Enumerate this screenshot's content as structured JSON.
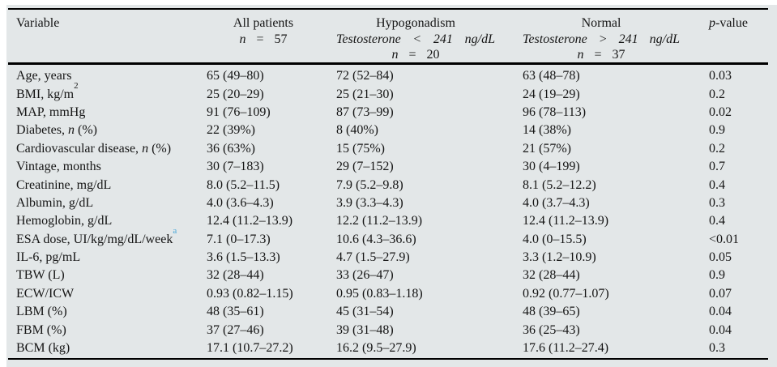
{
  "colors": {
    "panel_bg": "#e3e7e8",
    "rule": "#000000",
    "text": "#151515",
    "footnote_link": "#45a6d8"
  },
  "header": {
    "variable_label": "Variable",
    "all": {
      "title": "All patients",
      "n_label": "n",
      "eq": "=",
      "n_value": "57"
    },
    "hypo": {
      "title": "Hypogonadism",
      "criteria": [
        "Testosterone",
        "<",
        "241",
        "ng/dL"
      ],
      "n_label": "n",
      "eq": "=",
      "n_value": "20"
    },
    "normal": {
      "title": "Normal",
      "criteria": [
        "Testosterone",
        ">",
        "241",
        "ng/dL"
      ],
      "n_label": "n",
      "eq": "=",
      "n_value": "37"
    },
    "pvalue": {
      "italic": "p",
      "rest": "-value"
    }
  },
  "rows": [
    {
      "pre": "Age, years",
      "all": "65 (49–80)",
      "hypo": "72 (52–84)",
      "normal": "63 (48–78)",
      "p": "0.03"
    },
    {
      "pre": "BMI, kg/m",
      "sup": "2",
      "all": "25 (20–29)",
      "hypo": "25 (21–30)",
      "normal": "24 (19–29)",
      "p": "0.2"
    },
    {
      "pre": "MAP, mmHg",
      "all": "91 (76–109)",
      "hypo": "87 (73–99)",
      "normal": "96 (78–113)",
      "p": "0.02"
    },
    {
      "pre": "Diabetes, ",
      "it": "n",
      "post": " (%)",
      "all": "22 (39%)",
      "hypo": "8 (40%)",
      "normal": "14 (38%)",
      "p": "0.9"
    },
    {
      "pre": "Cardiovascular disease, ",
      "it": "n",
      "post": " (%)",
      "all": "36 (63%)",
      "hypo": "15 (75%)",
      "normal": "21 (57%)",
      "p": "0.2"
    },
    {
      "pre": "Vintage, months",
      "all": "30 (7–183)",
      "hypo": "29 (7–152)",
      "normal": "30 (4–199)",
      "p": "0.7"
    },
    {
      "pre": "Creatinine, mg/dL",
      "all": "8.0 (5.2–11.5)",
      "hypo": "7.9 (5.2–9.8)",
      "normal": "8.1 (5.2–12.2)",
      "p": "0.4"
    },
    {
      "pre": "Albumin, g/dL",
      "all": "4.0 (3.6–4.3)",
      "hypo": "3.9 (3.3–4.3)",
      "normal": "4.0 (3.7–4.3)",
      "p": "0.3"
    },
    {
      "pre": "Hemoglobin, g/dL",
      "all": "12.4 (11.2–13.9)",
      "hypo": "12.2 (11.2–13.9)",
      "normal": "12.4 (11.2–13.9)",
      "p": "0.4"
    },
    {
      "pre": "ESA dose, UI/kg/mg/dL/week",
      "supa": "a",
      "all": "7.1 (0–17.3)",
      "hypo": "10.6 (4.3–36.6)",
      "normal": "4.0 (0–15.5)",
      "p": "<0.01"
    },
    {
      "pre": "IL-6, pg/mL",
      "all": "3.6 (1.5–13.3)",
      "hypo": "4.7 (1.5–27.9)",
      "normal": "3.3 (1.2–10.9)",
      "p": "0.05"
    },
    {
      "pre": "TBW (L)",
      "all": "32 (28–44)",
      "hypo": "33 (26–47)",
      "normal": "32 (28–44)",
      "p": "0.9"
    },
    {
      "pre": "ECW/ICW",
      "all": "0.93 (0.82–1.15)",
      "hypo": "0.95 (0.83–1.18)",
      "normal": "0.92 (0.77–1.07)",
      "p": "0.07"
    },
    {
      "pre": "LBM (%)",
      "all": "48 (35–61)",
      "hypo": "45 (31–54)",
      "normal": "48 (39–65)",
      "p": "0.04"
    },
    {
      "pre": "FBM (%)",
      "all": "37 (27–46)",
      "hypo": "39 (31–48)",
      "normal": "36 (25–43)",
      "p": "0.04"
    },
    {
      "pre": "BCM (kg)",
      "all": "17.1 (10.7–27.2)",
      "hypo": "16.2 (9.5–27.9)",
      "normal": "17.6 (11.2–27.4)",
      "p": "0.3"
    }
  ]
}
